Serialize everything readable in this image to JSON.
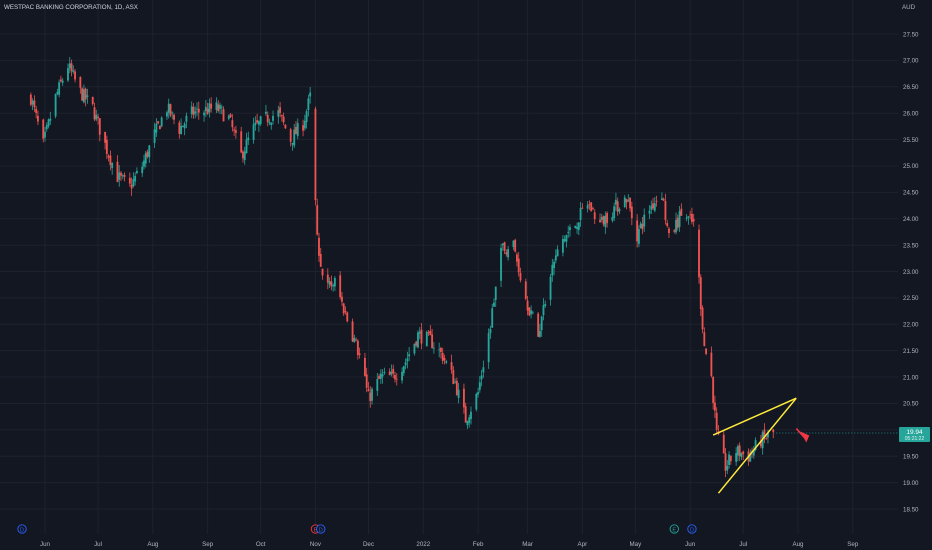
{
  "chart_data": {
    "type": "candlestick",
    "title": "WESTPAC BANKING CORPORATION, 1D, ASX",
    "currency": "AUD",
    "x_ticks": [
      "Jun",
      "Jul",
      "Aug",
      "Sep",
      "Oct",
      "Nov",
      "Dec",
      "2022",
      "Feb",
      "Mar",
      "Apr",
      "May",
      "Jun",
      "Jul",
      "Aug",
      "Sep"
    ],
    "y_ticks": [
      "18.50",
      "19.00",
      "19.50",
      "20.00",
      "20.50",
      "21.00",
      "21.50",
      "22.00",
      "22.50",
      "23.00",
      "23.50",
      "24.00",
      "24.50",
      "25.00",
      "25.50",
      "26.00",
      "26.50",
      "27.00",
      "27.50"
    ],
    "ylim": [
      18.5,
      27.5
    ],
    "last_price": "19.94",
    "countdown": "05:21:22",
    "grid": true,
    "colors": {
      "up": "#26a69a",
      "down": "#ef5350",
      "pattern": "#ffeb3b",
      "arrow": "#f23645",
      "background": "#131722"
    },
    "anchors": [
      [
        "2021-05-24",
        26.3
      ],
      [
        "2021-05-31",
        25.4
      ],
      [
        "2021-06-07",
        26.3
      ],
      [
        "2021-06-14",
        26.9
      ],
      [
        "2021-06-21",
        26.4
      ],
      [
        "2021-06-28",
        26.1
      ],
      [
        "2021-07-05",
        25.4
      ],
      [
        "2021-07-12",
        24.8
      ],
      [
        "2021-07-19",
        24.6
      ],
      [
        "2021-07-26",
        25.0
      ],
      [
        "2021-08-02",
        25.6
      ],
      [
        "2021-08-09",
        26.1
      ],
      [
        "2021-08-16",
        25.7
      ],
      [
        "2021-08-23",
        26.0
      ],
      [
        "2021-09-06",
        26.1
      ],
      [
        "2021-09-13",
        25.9
      ],
      [
        "2021-09-20",
        25.2
      ],
      [
        "2021-09-27",
        25.7
      ],
      [
        "2021-10-04",
        25.9
      ],
      [
        "2021-10-11",
        26.0
      ],
      [
        "2021-10-18",
        25.5
      ],
      [
        "2021-10-25",
        25.8
      ],
      [
        "2021-10-29",
        26.3
      ],
      [
        "2021-11-01",
        24.3
      ],
      [
        "2021-11-03",
        23.2
      ],
      [
        "2021-11-08",
        22.7
      ],
      [
        "2021-11-12",
        22.8
      ],
      [
        "2021-11-19",
        22.1
      ],
      [
        "2021-11-26",
        21.4
      ],
      [
        "2021-12-01",
        20.6
      ],
      [
        "2021-12-08",
        21.0
      ],
      [
        "2021-12-15",
        21.0
      ],
      [
        "2021-12-22",
        21.3
      ],
      [
        "2021-12-29",
        21.8
      ],
      [
        "2022-01-05",
        21.7
      ],
      [
        "2022-01-12",
        21.4
      ],
      [
        "2022-01-19",
        20.9
      ],
      [
        "2022-01-25",
        20.2
      ],
      [
        "2022-02-01",
        20.7
      ],
      [
        "2022-02-08",
        22.0
      ],
      [
        "2022-02-14",
        23.4
      ],
      [
        "2022-02-21",
        23.5
      ],
      [
        "2022-02-28",
        22.5
      ],
      [
        "2022-03-07",
        21.8
      ],
      [
        "2022-03-14",
        23.0
      ],
      [
        "2022-03-21",
        23.6
      ],
      [
        "2022-03-28",
        23.9
      ],
      [
        "2022-04-04",
        24.3
      ],
      [
        "2022-04-11",
        23.9
      ],
      [
        "2022-04-19",
        24.2
      ],
      [
        "2022-04-26",
        24.4
      ],
      [
        "2022-05-02",
        23.7
      ],
      [
        "2022-05-09",
        24.2
      ],
      [
        "2022-05-16",
        24.5
      ],
      [
        "2022-05-20",
        23.6
      ],
      [
        "2022-05-27",
        24.1
      ],
      [
        "2022-06-03",
        23.9
      ],
      [
        "2022-06-06",
        22.8
      ],
      [
        "2022-06-09",
        21.6
      ],
      [
        "2022-06-13",
        21.0
      ],
      [
        "2022-06-16",
        19.9
      ],
      [
        "2022-06-21",
        19.3
      ],
      [
        "2022-06-27",
        19.6
      ],
      [
        "2022-07-04",
        19.5
      ],
      [
        "2022-07-11",
        19.8
      ],
      [
        "2022-07-18",
        19.94
      ]
    ],
    "pattern_lines": [
      {
        "from": [
          "2022-06-14",
          19.9
        ],
        "to": [
          "2022-07-31",
          20.6
        ]
      },
      {
        "from": [
          "2022-06-17",
          18.8
        ],
        "to": [
          "2022-07-31",
          20.6
        ]
      }
    ],
    "event_markers": [
      {
        "date": "2021-05-19",
        "label": "D",
        "color": "#2962ff"
      },
      {
        "date": "2021-11-01",
        "label": "E",
        "color": "#f23645"
      },
      {
        "date": "2021-11-04",
        "label": "D",
        "color": "#2962ff"
      },
      {
        "date": "2022-05-23",
        "label": "E",
        "color": "#26a69a"
      },
      {
        "date": "2022-06-02",
        "label": "D",
        "color": "#2962ff"
      }
    ]
  }
}
